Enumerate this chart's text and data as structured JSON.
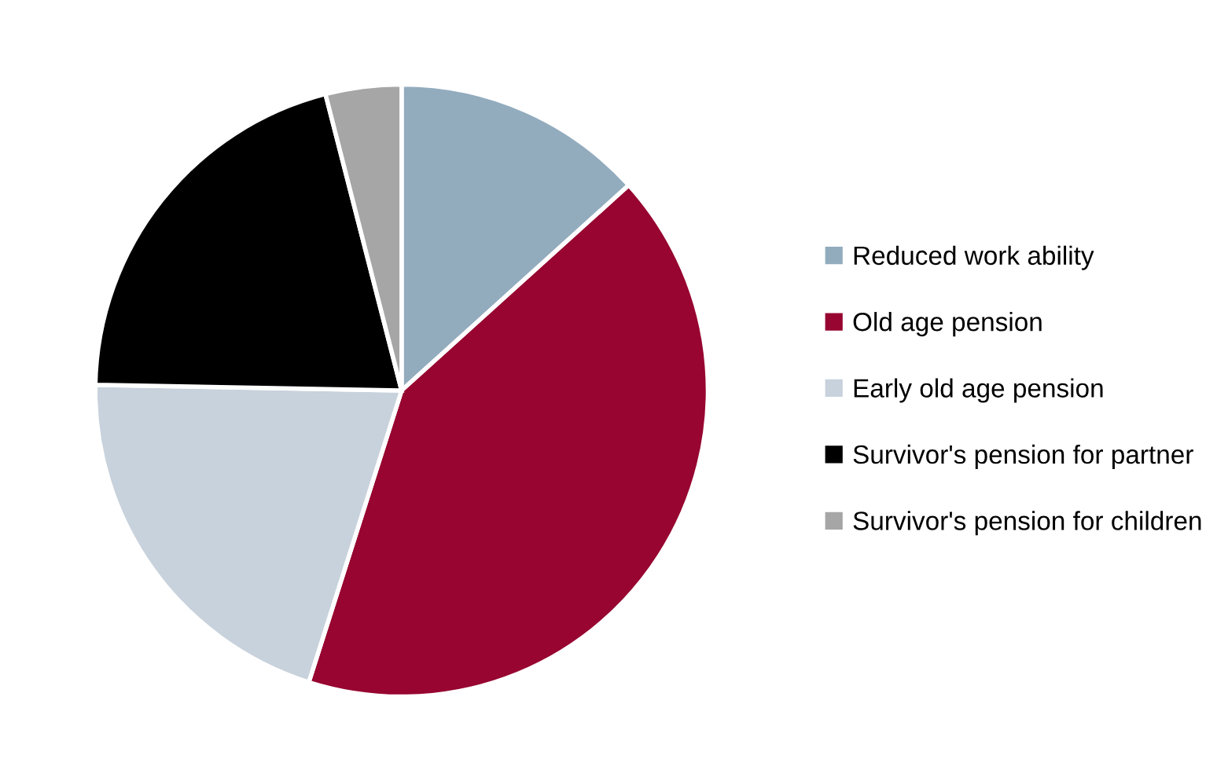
{
  "chart_data": {
    "type": "pie",
    "categories": [
      "Reduced work ability",
      "Old age pension",
      "Early old age pension",
      "Survivor's pension for partner",
      "Survivor's pension for children"
    ],
    "values": [
      13.3,
      41.6,
      20.4,
      20.7,
      4.0
    ],
    "colors": [
      "#92acbe",
      "#970530",
      "#c8d2dc",
      "#000000",
      "#a6a6a6"
    ],
    "legend": "right"
  }
}
